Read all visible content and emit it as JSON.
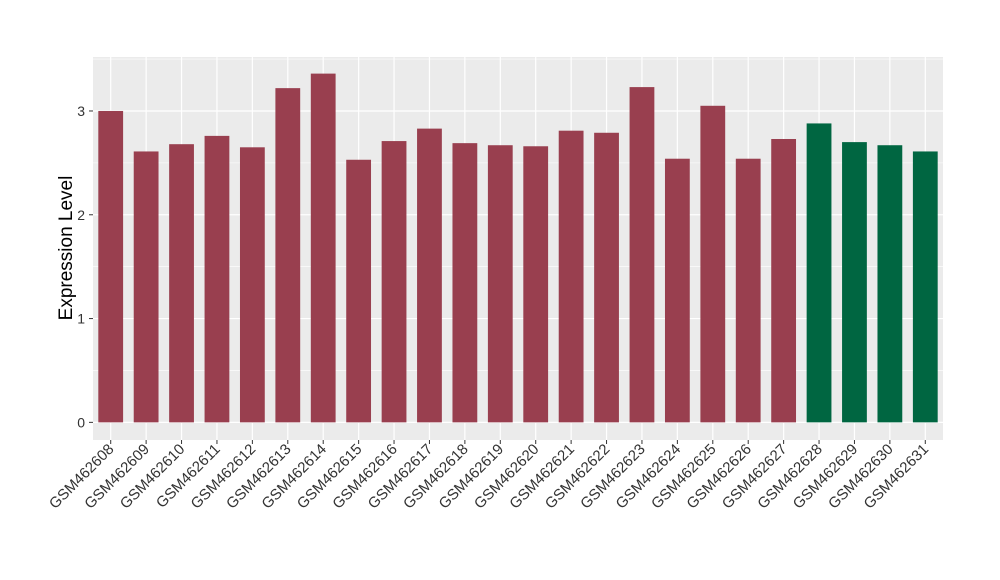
{
  "chart_data": {
    "type": "bar",
    "y_label": "Expression Level",
    "categories": [
      "GSM462608",
      "GSM462609",
      "GSM462610",
      "GSM462611",
      "GSM462612",
      "GSM462613",
      "GSM462614",
      "GSM462615",
      "GSM462616",
      "GSM462617",
      "GSM462618",
      "GSM462619",
      "GSM462620",
      "GSM462621",
      "GSM462622",
      "GSM462623",
      "GSM462624",
      "GSM462625",
      "GSM462626",
      "GSM462627",
      "GSM462628",
      "GSM462629",
      "GSM462630",
      "GSM462631"
    ],
    "values": [
      3.0,
      2.61,
      2.68,
      2.76,
      2.65,
      3.22,
      3.36,
      2.53,
      2.71,
      2.83,
      2.69,
      2.67,
      2.66,
      2.81,
      2.79,
      3.23,
      2.54,
      3.05,
      2.54,
      2.73,
      2.88,
      2.7,
      2.67,
      2.61
    ],
    "colors": [
      "#993f4f",
      "#993f4f",
      "#993f4f",
      "#993f4f",
      "#993f4f",
      "#993f4f",
      "#993f4f",
      "#993f4f",
      "#993f4f",
      "#993f4f",
      "#993f4f",
      "#993f4f",
      "#993f4f",
      "#993f4f",
      "#993f4f",
      "#993f4f",
      "#993f4f",
      "#993f4f",
      "#993f4f",
      "#993f4f",
      "#006641",
      "#006641",
      "#006641",
      "#006641"
    ],
    "ylim": [
      -0.17,
      3.52
    ],
    "yticks": [
      0,
      1,
      2,
      3
    ],
    "grid": true
  }
}
